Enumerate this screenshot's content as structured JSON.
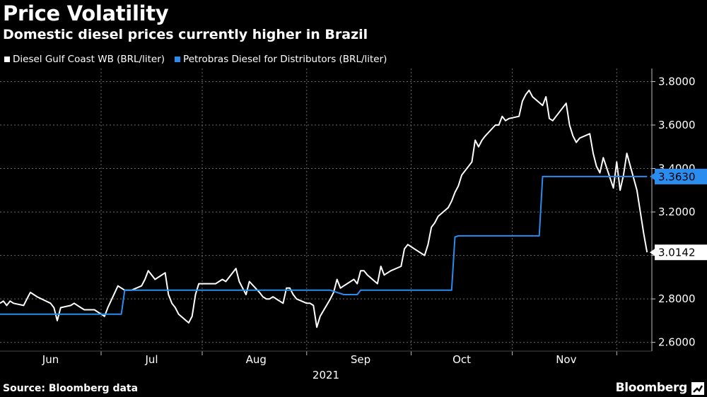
{
  "header": {
    "title": "Price Volatility",
    "subtitle": "Domestic diesel prices currently higher in Brazil"
  },
  "legend": {
    "items": [
      {
        "label": "Diesel Gulf Coast WB (BRL/liter)",
        "color": "#ffffff"
      },
      {
        "label": "Petrobras Diesel for Distributors (BRL/liter)",
        "color": "#2b8cf0"
      }
    ]
  },
  "footer": {
    "source": "Source: Bloomberg data",
    "brand": "Bloomberg"
  },
  "chart_data": {
    "type": "line",
    "title": "Price Volatility",
    "subtitle": "Domestic diesel prices currently higher in Brazil",
    "xlabel": "2021",
    "ylabel": "",
    "x_range": [
      "2021-05-17",
      "2021-11-26"
    ],
    "ylim": [
      2.56,
      3.86
    ],
    "y_ticks": [
      2.6,
      2.8,
      3.0,
      3.2,
      3.4,
      3.6,
      3.8
    ],
    "y_tick_labels": [
      "2.6000",
      "2.8000",
      "3.0000",
      "3.2000",
      "3.4000",
      "3.6000",
      "3.8000"
    ],
    "x_ticks": [
      {
        "date": "2021-06-01",
        "label": "Jun"
      },
      {
        "date": "2021-07-01",
        "label": "Jul"
      },
      {
        "date": "2021-08-01",
        "label": "Aug"
      },
      {
        "date": "2021-09-01",
        "label": "Sep"
      },
      {
        "date": "2021-10-01",
        "label": "Oct"
      },
      {
        "date": "2021-11-01",
        "label": "Nov"
      }
    ],
    "year_label": "2021",
    "grid": true,
    "y_axis_side": "right",
    "legend_position": "top-left",
    "series": [
      {
        "name": "Diesel Gulf Coast WB (BRL/liter)",
        "color": "#ffffff",
        "last_value_label": "3.0142",
        "points": [
          [
            "2021-05-17",
            2.78
          ],
          [
            "2021-05-18",
            2.79
          ],
          [
            "2021-05-19",
            2.77
          ],
          [
            "2021-05-20",
            2.79
          ],
          [
            "2021-05-21",
            2.78
          ],
          [
            "2021-05-24",
            2.77
          ],
          [
            "2021-05-25",
            2.8
          ],
          [
            "2021-05-26",
            2.83
          ],
          [
            "2021-05-27",
            2.82
          ],
          [
            "2021-05-28",
            2.81
          ],
          [
            "2021-06-01",
            2.78
          ],
          [
            "2021-06-02",
            2.76
          ],
          [
            "2021-06-03",
            2.7
          ],
          [
            "2021-06-04",
            2.76
          ],
          [
            "2021-06-07",
            2.77
          ],
          [
            "2021-06-08",
            2.78
          ],
          [
            "2021-06-09",
            2.77
          ],
          [
            "2021-06-10",
            2.76
          ],
          [
            "2021-06-11",
            2.75
          ],
          [
            "2021-06-14",
            2.75
          ],
          [
            "2021-06-15",
            2.74
          ],
          [
            "2021-06-16",
            2.73
          ],
          [
            "2021-06-17",
            2.72
          ],
          [
            "2021-06-18",
            2.76
          ],
          [
            "2021-06-21",
            2.86
          ],
          [
            "2021-06-22",
            2.85
          ],
          [
            "2021-06-23",
            2.84
          ],
          [
            "2021-06-24",
            2.84
          ],
          [
            "2021-06-25",
            2.84
          ],
          [
            "2021-06-28",
            2.86
          ],
          [
            "2021-06-29",
            2.89
          ],
          [
            "2021-06-30",
            2.93
          ],
          [
            "2021-07-01",
            2.91
          ],
          [
            "2021-07-02",
            2.89
          ],
          [
            "2021-07-05",
            2.92
          ],
          [
            "2021-07-06",
            2.82
          ],
          [
            "2021-07-07",
            2.78
          ],
          [
            "2021-07-08",
            2.76
          ],
          [
            "2021-07-09",
            2.73
          ],
          [
            "2021-07-12",
            2.69
          ],
          [
            "2021-07-13",
            2.72
          ],
          [
            "2021-07-14",
            2.82
          ],
          [
            "2021-07-15",
            2.87
          ],
          [
            "2021-07-16",
            2.87
          ],
          [
            "2021-07-19",
            2.87
          ],
          [
            "2021-07-20",
            2.87
          ],
          [
            "2021-07-21",
            2.88
          ],
          [
            "2021-07-22",
            2.89
          ],
          [
            "2021-07-23",
            2.88
          ],
          [
            "2021-07-26",
            2.94
          ],
          [
            "2021-07-27",
            2.88
          ],
          [
            "2021-07-28",
            2.85
          ],
          [
            "2021-07-29",
            2.82
          ],
          [
            "2021-07-30",
            2.88
          ],
          [
            "2021-08-02",
            2.83
          ],
          [
            "2021-08-03",
            2.81
          ],
          [
            "2021-08-04",
            2.8
          ],
          [
            "2021-08-05",
            2.8
          ],
          [
            "2021-08-06",
            2.81
          ],
          [
            "2021-08-09",
            2.78
          ],
          [
            "2021-08-10",
            2.85
          ],
          [
            "2021-08-11",
            2.85
          ],
          [
            "2021-08-12",
            2.82
          ],
          [
            "2021-08-13",
            2.8
          ],
          [
            "2021-08-16",
            2.78
          ],
          [
            "2021-08-17",
            2.78
          ],
          [
            "2021-08-18",
            2.77
          ],
          [
            "2021-08-19",
            2.67
          ],
          [
            "2021-08-20",
            2.72
          ],
          [
            "2021-08-23",
            2.8
          ],
          [
            "2021-08-24",
            2.83
          ],
          [
            "2021-08-25",
            2.89
          ],
          [
            "2021-08-26",
            2.85
          ],
          [
            "2021-08-27",
            2.86
          ],
          [
            "2021-08-30",
            2.89
          ],
          [
            "2021-08-31",
            2.87
          ],
          [
            "2021-09-01",
            2.93
          ],
          [
            "2021-09-02",
            2.93
          ],
          [
            "2021-09-03",
            2.91
          ],
          [
            "2021-09-06",
            2.87
          ],
          [
            "2021-09-07",
            2.95
          ],
          [
            "2021-09-08",
            2.91
          ],
          [
            "2021-09-09",
            2.92
          ],
          [
            "2021-09-10",
            2.93
          ],
          [
            "2021-09-13",
            2.95
          ],
          [
            "2021-09-14",
            3.03
          ],
          [
            "2021-09-15",
            3.05
          ],
          [
            "2021-09-16",
            3.04
          ],
          [
            "2021-09-17",
            3.03
          ],
          [
            "2021-09-20",
            3.0
          ],
          [
            "2021-09-21",
            3.05
          ],
          [
            "2021-09-22",
            3.13
          ],
          [
            "2021-09-23",
            3.15
          ],
          [
            "2021-09-24",
            3.18
          ],
          [
            "2021-09-27",
            3.22
          ],
          [
            "2021-09-28",
            3.25
          ],
          [
            "2021-09-29",
            3.29
          ],
          [
            "2021-09-30",
            3.32
          ],
          [
            "2021-10-01",
            3.37
          ],
          [
            "2021-10-04",
            3.43
          ],
          [
            "2021-10-05",
            3.53
          ],
          [
            "2021-10-06",
            3.5
          ],
          [
            "2021-10-07",
            3.53
          ],
          [
            "2021-10-08",
            3.55
          ],
          [
            "2021-10-11",
            3.6
          ],
          [
            "2021-10-12",
            3.6
          ],
          [
            "2021-10-13",
            3.64
          ],
          [
            "2021-10-14",
            3.62
          ],
          [
            "2021-10-15",
            3.63
          ],
          [
            "2021-10-18",
            3.64
          ],
          [
            "2021-10-19",
            3.71
          ],
          [
            "2021-10-20",
            3.74
          ],
          [
            "2021-10-21",
            3.76
          ],
          [
            "2021-10-22",
            3.73
          ],
          [
            "2021-10-25",
            3.69
          ],
          [
            "2021-10-26",
            3.73
          ],
          [
            "2021-10-27",
            3.63
          ],
          [
            "2021-10-28",
            3.62
          ],
          [
            "2021-10-29",
            3.64
          ],
          [
            "2021-11-01",
            3.7
          ],
          [
            "2021-11-02",
            3.6
          ],
          [
            "2021-11-03",
            3.55
          ],
          [
            "2021-11-04",
            3.52
          ],
          [
            "2021-11-05",
            3.54
          ],
          [
            "2021-11-08",
            3.56
          ],
          [
            "2021-11-09",
            3.47
          ],
          [
            "2021-11-10",
            3.41
          ],
          [
            "2021-11-11",
            3.38
          ],
          [
            "2021-11-12",
            3.45
          ],
          [
            "2021-11-15",
            3.31
          ],
          [
            "2021-11-16",
            3.43
          ],
          [
            "2021-11-17",
            3.3
          ],
          [
            "2021-11-18",
            3.37
          ],
          [
            "2021-11-19",
            3.47
          ],
          [
            "2021-11-22",
            3.3
          ],
          [
            "2021-11-23",
            3.2
          ],
          [
            "2021-11-24",
            3.1
          ],
          [
            "2021-11-25",
            3.0142
          ]
        ]
      },
      {
        "name": "Petrobras Diesel for Distributors (BRL/liter)",
        "color": "#2b8cf0",
        "last_value_label": "3.3630",
        "step": true,
        "points": [
          [
            "2021-05-17",
            2.73
          ],
          [
            "2021-06-22",
            2.73
          ],
          [
            "2021-06-23",
            2.84
          ],
          [
            "2021-08-23",
            2.84
          ],
          [
            "2021-08-27",
            2.82
          ],
          [
            "2021-08-31",
            2.82
          ],
          [
            "2021-09-01",
            2.84
          ],
          [
            "2021-09-28",
            2.84
          ],
          [
            "2021-09-29",
            3.085
          ],
          [
            "2021-09-30",
            3.09
          ],
          [
            "2021-10-24",
            3.09
          ],
          [
            "2021-10-25",
            3.363
          ],
          [
            "2021-11-25",
            3.363
          ]
        ]
      }
    ]
  }
}
